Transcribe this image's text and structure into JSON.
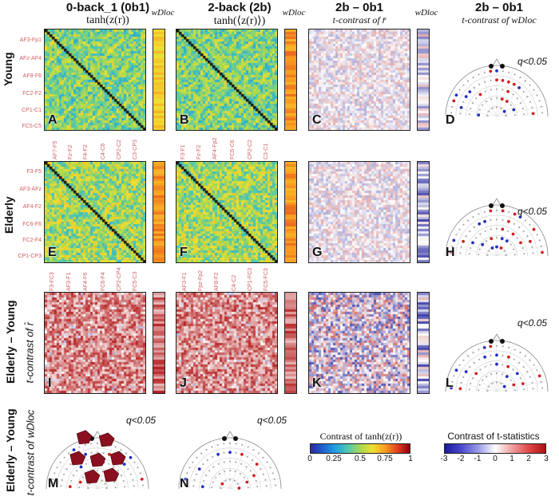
{
  "columns": {
    "c1": {
      "title": "0-back_1 (0b1)",
      "sub": "tanh(z(r))"
    },
    "c2": {
      "title": "2-back (2b)",
      "sub": "tanh(⟨z(r)⟩)"
    },
    "c3": {
      "title": "2b – 0b1",
      "sub": "t-contrast of r̄"
    },
    "c4": {
      "title": "2b – 0b1",
      "sub": "t-contrast of wDloc"
    },
    "wd": "wDloc"
  },
  "rows": {
    "young": "Young",
    "elderly": "Elderly",
    "diff": "Elderly – Young",
    "diff_sub": "t-contrast of r̄",
    "bottom": "Elderly – Young",
    "bottom_sub": "t-contrast of wDloc"
  },
  "panel_letters": [
    "A",
    "B",
    "C",
    "D",
    "E",
    "F",
    "G",
    "H",
    "I",
    "J",
    "K",
    "L",
    "M",
    "N"
  ],
  "q": "q<0.05",
  "labels": {
    "A_y": [
      "AF3-Fp1",
      "AFz-AF4",
      "AF8-F6",
      "FC2-F2",
      "CP1-C1",
      "FC5-C5"
    ],
    "A_x": [
      "AF7-F5",
      "Fz-F2",
      "F4-F2",
      "C4-C6",
      "CP2-C2",
      "C3-CP3"
    ],
    "B_x": [
      "F3-F1",
      "Fz-F2",
      "AF4-Fp2",
      "FC6-C6",
      "CP2-C2",
      "C3-C1"
    ],
    "E_y": [
      "F3-F5",
      "AF3-AFz",
      "AF4-F2",
      "FC6-F6",
      "FC2-F4",
      "CP1-CP3"
    ],
    "E_x": [
      "F3-FC3",
      "AF3-F1",
      "AF4-F6",
      "FC6-F4",
      "CP2-CP4",
      "FC5-C3"
    ],
    "F_x": [
      "AF3-F1",
      "Fpz-Fp2",
      "AF8-F2",
      "C4-C2",
      "CP1-FC3",
      "FC5-FC3"
    ]
  },
  "colorbars": {
    "left": {
      "title": "Contrast of tanh(z(r))",
      "ticks": [
        "0",
        "0.25",
        "0.5",
        "0.75",
        "1"
      ]
    },
    "right": {
      "title": "Contrast of t-statistics",
      "ticks": [
        "-3",
        "-2",
        "-1",
        "0",
        "1",
        "2",
        "3"
      ]
    }
  }
}
